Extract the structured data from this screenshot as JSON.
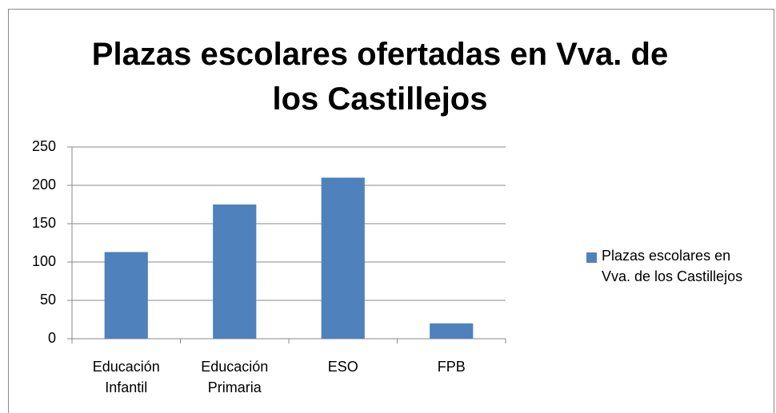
{
  "chart_data": {
    "type": "bar",
    "title": "Plazas escolares ofertadas en Vva. de los Castillejos",
    "categories": [
      "Educación Infantil",
      "Educación Primaria",
      "ESO",
      "FPB"
    ],
    "series": [
      {
        "name": "Plazas escolares en Vva. de los Castillejos",
        "color": "#4f81bd",
        "values": [
          113,
          175,
          210,
          20
        ]
      }
    ],
    "ylim": [
      0,
      250
    ],
    "yticks": [
      0,
      50,
      100,
      150,
      200,
      250
    ],
    "grid": true,
    "legend": "right"
  }
}
